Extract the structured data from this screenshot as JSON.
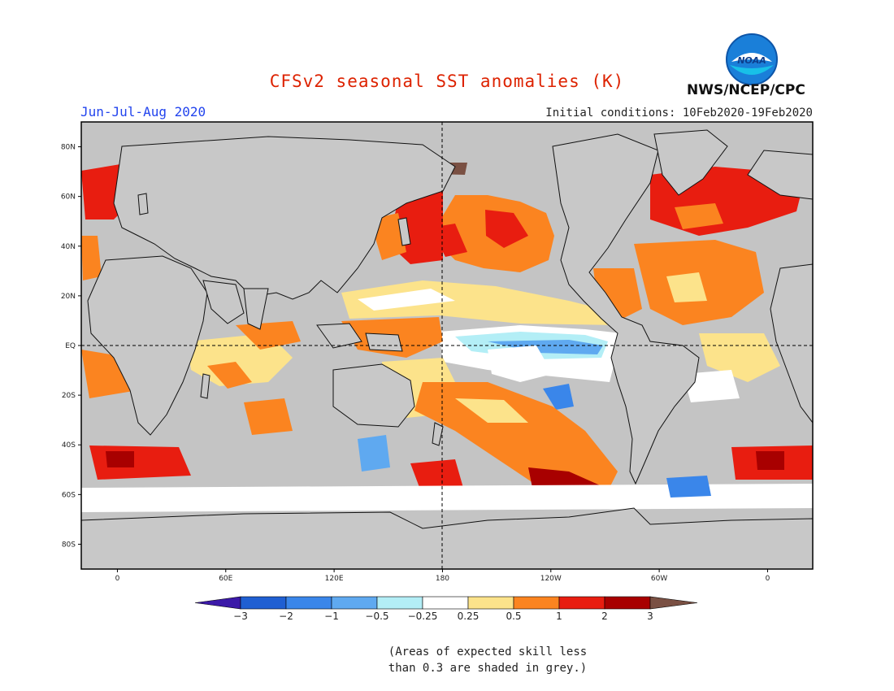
{
  "title": "CFSv2 seasonal SST anomalies (K)",
  "season": "Jun-Jul-Aug 2020",
  "initial_conditions": "Initial conditions: 10Feb2020-19Feb2020",
  "agency": "NWS/NCEP/CPC",
  "logo_text": "NOAA",
  "colors": {
    "title": "#dd2200",
    "season": "#2244ee",
    "land": "#c8c8c8",
    "grey_mask": "#c4c4c4"
  },
  "map": {
    "lat_labels": [
      "80N",
      "60N",
      "40N",
      "20N",
      "EQ",
      "20S",
      "40S",
      "60S",
      "80S"
    ],
    "lat_values": [
      80,
      60,
      40,
      20,
      0,
      -20,
      -40,
      -60,
      -80
    ],
    "lon_labels": [
      "0",
      "60E",
      "120E",
      "180",
      "120W",
      "60W",
      "0"
    ],
    "lon_values": [
      0,
      60,
      120,
      180,
      240,
      300,
      360
    ],
    "lon_range": [
      -20,
      385
    ],
    "lat_range": [
      -90,
      90
    ]
  },
  "colorbar": {
    "levels": [
      "-3",
      "-2",
      "-1",
      "-0.5",
      "-0.25",
      "0.25",
      "0.5",
      "1",
      "2",
      "3"
    ],
    "colors": [
      "#3b19a8",
      "#1f5fd2",
      "#3a86ea",
      "#5fa9f0",
      "#b3eef6",
      "#ffffff",
      "#fce38b",
      "#fb8420",
      "#e81d10",
      "#a80000",
      "#7a5043"
    ]
  },
  "note": {
    "line1": "(Areas of expected skill less",
    "line2": "than 0.3 are shaded in grey.)"
  }
}
